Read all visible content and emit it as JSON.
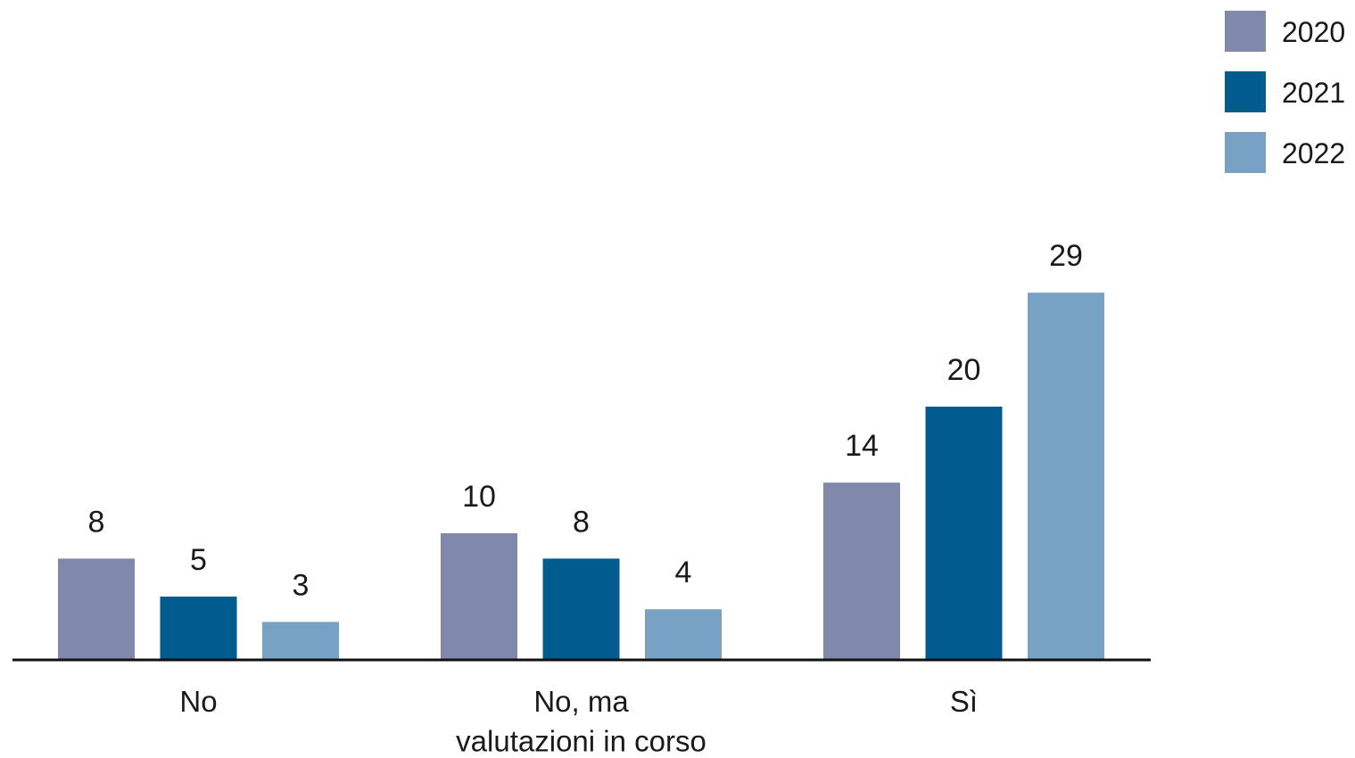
{
  "chart_data": {
    "type": "bar",
    "categories": [
      "No",
      "No, ma\nvalutazioni in corso",
      "Sì"
    ],
    "series": [
      {
        "name": "2020",
        "color": "#8089ab",
        "values": [
          8,
          10,
          14
        ]
      },
      {
        "name": "2021",
        "color": "#005c8e",
        "values": [
          5,
          8,
          20
        ]
      },
      {
        "name": "2022",
        "color": "#77a2c4",
        "values": [
          3,
          4,
          29
        ]
      }
    ],
    "legend": "top-right"
  }
}
